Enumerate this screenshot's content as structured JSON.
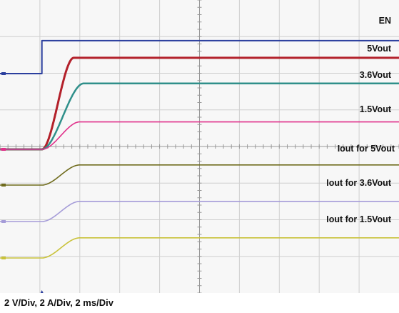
{
  "footer_text": "2 V/Div, 2 A/Div, 2 ms/Div",
  "colors": {
    "EN": "#2b3f9e",
    "5Vout": "#b3202a",
    "3.6Vout": "#2f8f8a",
    "1.5Vout": "#e0308a",
    "Iout for 5Vout": "#6f6b1c",
    "Iout for 3.6Vout": "#a59cd8",
    "Iout for 1.5Vout": "#c9c23a"
  },
  "chart_data": {
    "type": "line",
    "title": "",
    "xlabel": "",
    "ylabel": "",
    "scale": "2 V/Div, 2 A/Div, 2 ms/Div",
    "grid": true,
    "x_divisions": 10,
    "y_divisions": 8,
    "series": [
      {
        "name": "EN",
        "values": [
          {
            "x": 0,
            "y": 0
          },
          {
            "x": 2.1,
            "y": 0
          },
          {
            "x": 2.1,
            "y": 1.8
          },
          {
            "x": 20,
            "y": 1.8
          }
        ]
      },
      {
        "name": "5Vout",
        "values": [
          {
            "x": 0,
            "y": 0
          },
          {
            "x": 2.1,
            "y": 0
          },
          {
            "x": 3.7,
            "y": 5
          },
          {
            "x": 20,
            "y": 5
          }
        ]
      },
      {
        "name": "3.6Vout",
        "values": [
          {
            "x": 0,
            "y": 0
          },
          {
            "x": 2.1,
            "y": 0
          },
          {
            "x": 4.2,
            "y": 3.6
          },
          {
            "x": 20,
            "y": 3.6
          }
        ]
      },
      {
        "name": "1.5Vout",
        "values": [
          {
            "x": 0,
            "y": 0
          },
          {
            "x": 2.1,
            "y": 0
          },
          {
            "x": 4.0,
            "y": 1.5
          },
          {
            "x": 20,
            "y": 1.5
          }
        ]
      },
      {
        "name": "Iout for 5Vout",
        "values": [
          {
            "x": 0,
            "y": 0
          },
          {
            "x": 2.1,
            "y": 0
          },
          {
            "x": 4.0,
            "y": 1.1
          },
          {
            "x": 20,
            "y": 1.1
          }
        ]
      },
      {
        "name": "Iout for 3.6Vout",
        "values": [
          {
            "x": 0,
            "y": 0
          },
          {
            "x": 2.1,
            "y": 0
          },
          {
            "x": 4.0,
            "y": 1.1
          },
          {
            "x": 20,
            "y": 1.1
          }
        ]
      },
      {
        "name": "Iout for 1.5Vout",
        "values": [
          {
            "x": 0,
            "y": 0
          },
          {
            "x": 2.1,
            "y": 0
          },
          {
            "x": 4.0,
            "y": 1.1
          },
          {
            "x": 20,
            "y": 1.1
          }
        ]
      }
    ]
  }
}
